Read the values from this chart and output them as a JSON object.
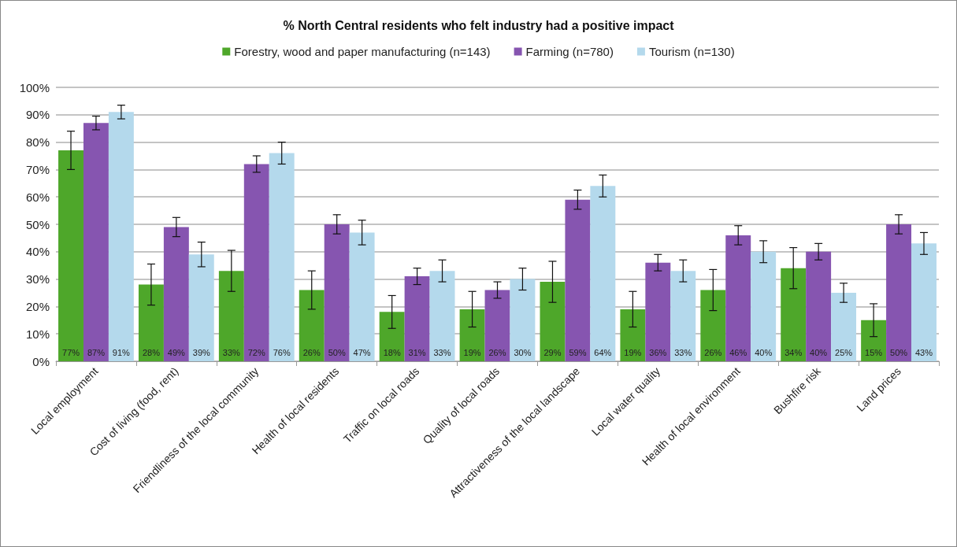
{
  "chart_data": {
    "type": "bar",
    "title": "% North Central residents who felt industry had a positive impact",
    "categories": [
      "Local employment",
      "Cost of living (food, rent)",
      "Friendliness of the local community",
      "Health of local residents",
      "Traffic on local roads",
      "Quality of local roads",
      "Attractiveness of the local landscape",
      "Local water quality",
      "Health of local environment",
      "Bushfire risk",
      "Land prices"
    ],
    "series": [
      {
        "name": "Forestry, wood and paper manufacturing (n=143)",
        "color": "#4ea72a",
        "values": [
          77,
          28,
          33,
          26,
          18,
          19,
          29,
          19,
          26,
          34,
          15
        ],
        "value_labels": [
          "77%",
          "28%",
          "33%",
          "26%",
          "18%",
          "19%",
          "29%",
          "19%",
          "26%",
          "34%",
          "15%"
        ],
        "errors": [
          7,
          7.5,
          7.5,
          7,
          6,
          6.5,
          7.5,
          6.5,
          7.5,
          7.5,
          6
        ]
      },
      {
        "name": "Farming (n=780)",
        "color": "#8655b0",
        "values": [
          87,
          49,
          72,
          50,
          31,
          26,
          59,
          36,
          46,
          40,
          50
        ],
        "value_labels": [
          "87%",
          "49%",
          "72%",
          "50%",
          "31%",
          "26%",
          "59%",
          "36%",
          "46%",
          "40%",
          "50%"
        ],
        "errors": [
          2.5,
          3.5,
          3,
          3.5,
          3,
          3,
          3.5,
          3,
          3.5,
          3,
          3.5
        ]
      },
      {
        "name": "Tourism (n=130)",
        "color": "#b4d9ec",
        "values": [
          91,
          39,
          76,
          47,
          33,
          30,
          64,
          33,
          40,
          25,
          43
        ],
        "value_labels": [
          "91%",
          "39%",
          "76%",
          "47%",
          "33%",
          "30%",
          "64%",
          "33%",
          "40%",
          "25%",
          "43%"
        ],
        "errors": [
          2.5,
          4.5,
          4,
          4.5,
          4,
          4,
          4,
          4,
          4,
          3.5,
          4
        ]
      }
    ],
    "ylim": [
      0,
      100
    ],
    "yticks": [
      {
        "value": 0,
        "label": "0%"
      },
      {
        "value": 10,
        "label": "10%"
      },
      {
        "value": 20,
        "label": "20%"
      },
      {
        "value": 30,
        "label": "30%"
      },
      {
        "value": 40,
        "label": "40%"
      },
      {
        "value": 50,
        "label": "50%"
      },
      {
        "value": 60,
        "label": "60%"
      },
      {
        "value": 70,
        "label": "70%"
      },
      {
        "value": 80,
        "label": "80%"
      },
      {
        "value": 90,
        "label": "90%"
      },
      {
        "value": 100,
        "label": "100%"
      }
    ],
    "grid": "y",
    "legend": "top"
  }
}
